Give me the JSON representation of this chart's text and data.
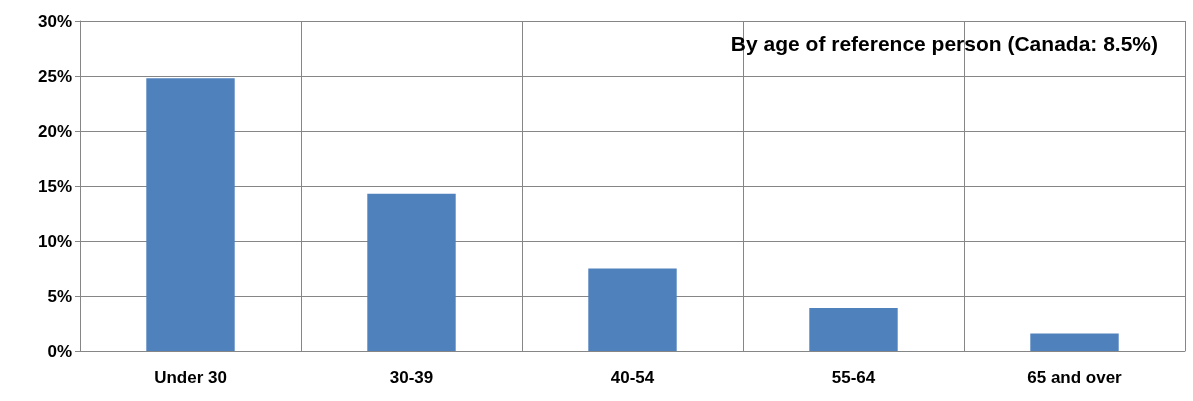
{
  "chart_data": {
    "type": "bar",
    "title": "By age of reference person (Canada: 8.5%)",
    "categories": [
      "Under 30",
      "30-39",
      "40-54",
      "55-64",
      "65 and over"
    ],
    "values": [
      24.8,
      14.3,
      7.5,
      3.9,
      1.6
    ],
    "color": "#4f81bd",
    "ylim": [
      0,
      30
    ],
    "yticks": [
      {
        "value": 0,
        "label": "0%"
      },
      {
        "value": 5,
        "label": "5%"
      },
      {
        "value": 10,
        "label": "10%"
      },
      {
        "value": 15,
        "label": "15%"
      },
      {
        "value": 20,
        "label": "20%"
      },
      {
        "value": 25,
        "label": "25%"
      },
      {
        "value": 30,
        "label": "30%"
      }
    ],
    "grid": true
  }
}
